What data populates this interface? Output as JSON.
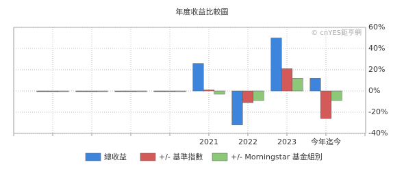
{
  "chart_data": {
    "type": "bar",
    "title": "年度收益比較圖",
    "watermark": "© cnYES鉅亨網",
    "categories": [
      null,
      null,
      null,
      null,
      "2021",
      "2022",
      "2023",
      "今年迄今"
    ],
    "series": [
      {
        "name": "總收益",
        "color": "#3c84dc",
        "values": [
          0,
          0,
          0,
          0,
          26,
          -32,
          50,
          12
        ]
      },
      {
        "name": "+/- 基準指數",
        "color": "#d45a5a",
        "values": [
          0,
          0,
          0,
          0,
          1,
          -11,
          21,
          -26
        ]
      },
      {
        "name": "+/- Morningstar 基金組別",
        "color": "#8cc878",
        "values": [
          0,
          0,
          0,
          0,
          -3,
          -9,
          12,
          -9
        ]
      }
    ],
    "ylim": [
      -40,
      60
    ],
    "yticks": [
      {
        "value": -40,
        "label": "-40%"
      },
      {
        "value": -20,
        "label": "-20%"
      },
      {
        "value": 0,
        "label": "0%"
      },
      {
        "value": 20,
        "label": "20%"
      },
      {
        "value": 40,
        "label": "40%"
      },
      {
        "value": 60,
        "label": "60%"
      }
    ],
    "grid": true
  }
}
